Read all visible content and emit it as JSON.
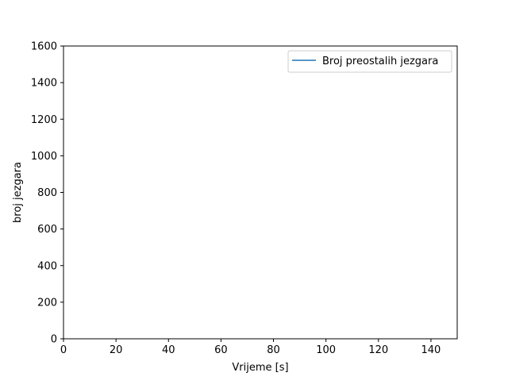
{
  "chart_data": {
    "type": "line",
    "title": "",
    "xlabel": "Vrijeme [s]",
    "ylabel": "broj jezgara",
    "xlim": [
      0,
      150
    ],
    "ylim": [
      0,
      1600
    ],
    "x_ticks": [
      0,
      20,
      40,
      60,
      80,
      100,
      120,
      140
    ],
    "y_ticks": [
      0,
      200,
      400,
      600,
      800,
      1000,
      1200,
      1400,
      1600
    ],
    "grid": false,
    "legend_position": "upper right",
    "series": [
      {
        "name": "Broj preostalih jezgara",
        "color": "#1f77b4",
        "x": [],
        "y": []
      }
    ]
  }
}
